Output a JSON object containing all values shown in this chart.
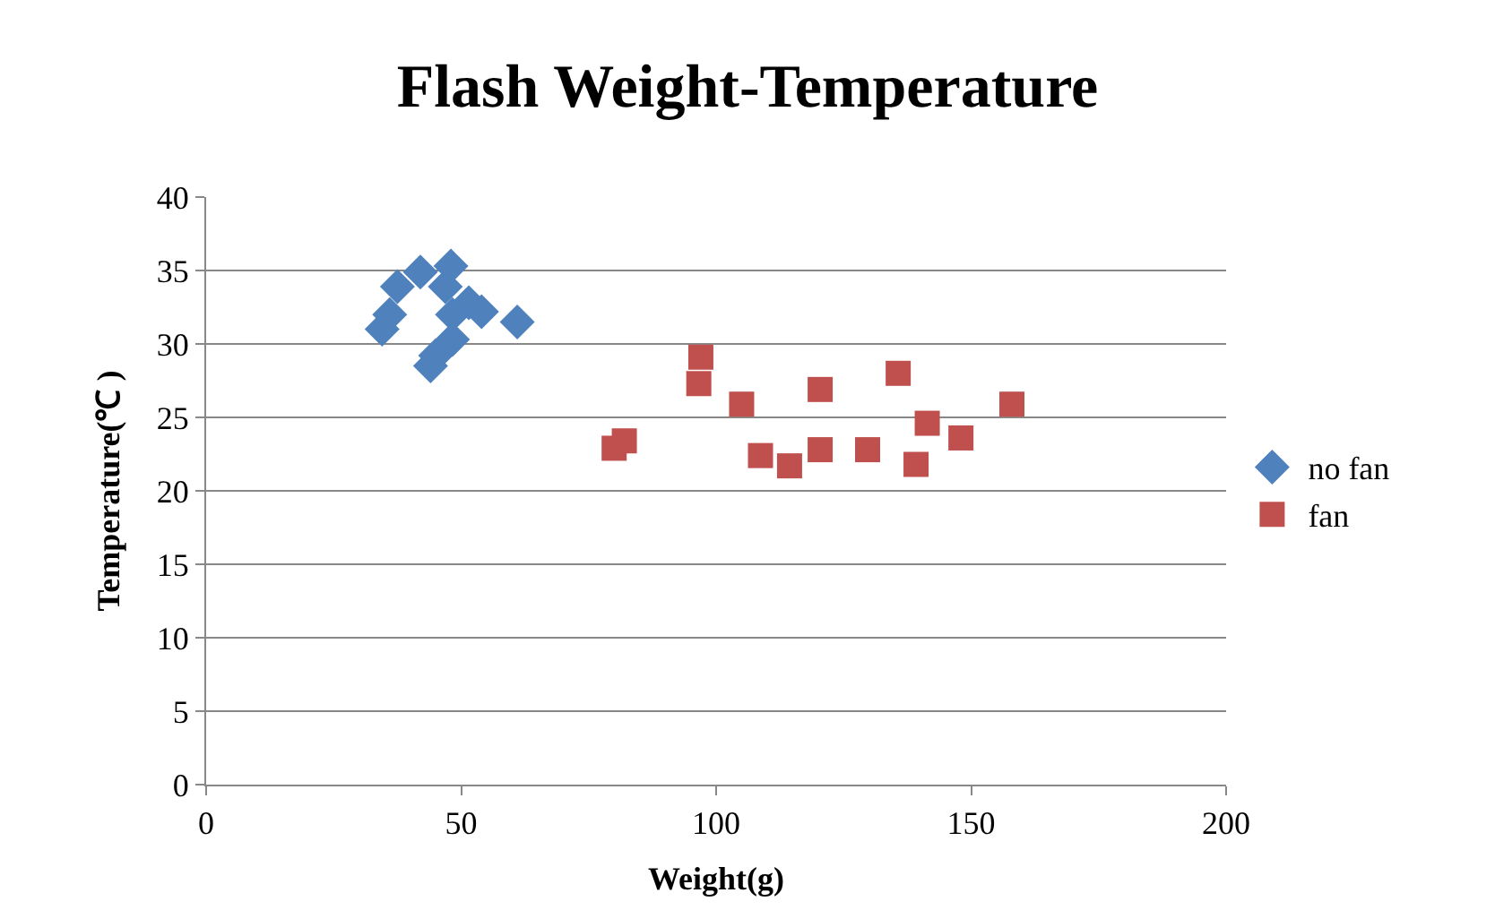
{
  "chart_data": {
    "type": "scatter",
    "title": "Flash Weight-Temperature",
    "xlabel": "Weight(g)",
    "ylabel": "Temperature(℃ )",
    "xlim": [
      0,
      200
    ],
    "xticks": [
      0,
      50,
      100,
      150,
      200
    ],
    "ylim": [
      0,
      40
    ],
    "yticks": [
      0,
      5,
      10,
      15,
      20,
      25,
      30,
      35,
      40
    ],
    "grid": "y",
    "legend": "right",
    "series": [
      {
        "name": "no fan",
        "color": "#4f81bd",
        "marker": "diamond",
        "x": [
          34.5,
          36,
          37.5,
          42,
          44,
          45,
          46.9,
          48,
          48.3,
          48.3,
          51.5,
          54,
          61
        ],
        "values": [
          31,
          32,
          33.9,
          34.9,
          28.5,
          29.2,
          33.9,
          35.3,
          30.3,
          32,
          32.8,
          32.2,
          31.5
        ]
      },
      {
        "name": "fan",
        "color": "#c0504d",
        "marker": "square",
        "x": [
          80,
          82,
          97,
          96.6,
          105,
          108.7,
          114.4,
          120.4,
          120.4,
          129.7,
          135.7,
          141.4,
          139.2,
          148,
          158
        ],
        "values": [
          22.9,
          23.4,
          29.1,
          27.3,
          25.9,
          22.4,
          21.7,
          26.9,
          22.8,
          22.8,
          28,
          24.6,
          21.8,
          23.6,
          25.9
        ]
      }
    ]
  }
}
